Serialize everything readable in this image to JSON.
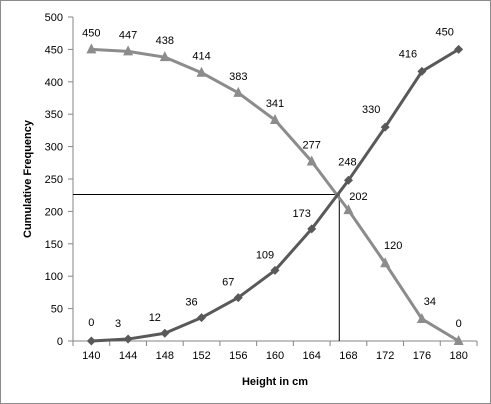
{
  "chart_data": {
    "type": "line",
    "xlabel": "Height in cm",
    "ylabel": "Cumulative Frequency",
    "x": [
      140,
      144,
      148,
      152,
      156,
      160,
      164,
      168,
      172,
      176,
      180
    ],
    "ylim": [
      0,
      500
    ],
    "yticks": [
      0,
      50,
      100,
      150,
      200,
      250,
      300,
      350,
      400,
      450,
      500
    ],
    "grid": false,
    "legend": "none",
    "series": [
      {
        "marker": "triangle",
        "color": "#8c8c8c",
        "values": [
          450,
          447,
          438,
          414,
          383,
          341,
          277,
          202,
          120,
          34,
          0
        ],
        "labels": [
          "450",
          "447",
          "438",
          "414",
          "383",
          "341",
          "277",
          "202",
          "120",
          "34",
          "0"
        ]
      },
      {
        "marker": "diamond",
        "color": "#595959",
        "values": [
          0,
          3,
          12,
          36,
          67,
          109,
          173,
          248,
          330,
          416,
          450
        ],
        "labels": [
          "0",
          "3",
          "12",
          "36",
          "67",
          "109",
          "173",
          "248",
          "330",
          "416",
          "450"
        ]
      }
    ],
    "reference_point": {
      "x": 167,
      "y": 226
    }
  }
}
